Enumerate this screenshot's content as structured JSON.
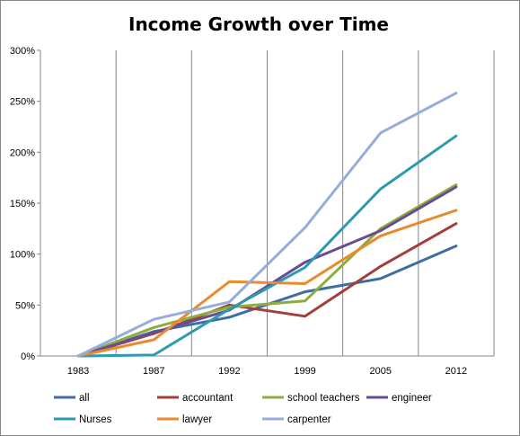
{
  "chart_data": {
    "type": "line",
    "title": "Income Growth over Time",
    "xlabel": "",
    "ylabel": "",
    "categories": [
      "1983",
      "1987",
      "1992",
      "1999",
      "2005",
      "2012"
    ],
    "ylim": [
      0,
      300
    ],
    "yticks": [
      "0%",
      "50%",
      "100%",
      "150%",
      "200%",
      "250%",
      "300%"
    ],
    "grid": "vertical",
    "legend_position": "bottom",
    "series": [
      {
        "name": "all",
        "color": "#3E6EA3",
        "values": [
          0,
          24,
          38,
          63,
          76,
          108
        ]
      },
      {
        "name": "accountant",
        "color": "#A33F3B",
        "values": [
          0,
          22,
          50,
          39,
          88,
          130
        ]
      },
      {
        "name": "school teachers",
        "color": "#8BAE3E",
        "values": [
          0,
          28,
          48,
          54,
          125,
          168
        ]
      },
      {
        "name": "engineer",
        "color": "#6A4C93",
        "values": [
          0,
          23,
          45,
          92,
          123,
          166
        ]
      },
      {
        "name": "Nurses",
        "color": "#2E9AAF",
        "values": [
          0,
          1,
          46,
          87,
          164,
          216
        ]
      },
      {
        "name": "lawyer",
        "color": "#E98A2E",
        "values": [
          0,
          16,
          73,
          71,
          118,
          143
        ]
      },
      {
        "name": "carpenter",
        "color": "#95ADDA",
        "values": [
          0,
          36,
          53,
          126,
          219,
          258
        ]
      }
    ]
  }
}
